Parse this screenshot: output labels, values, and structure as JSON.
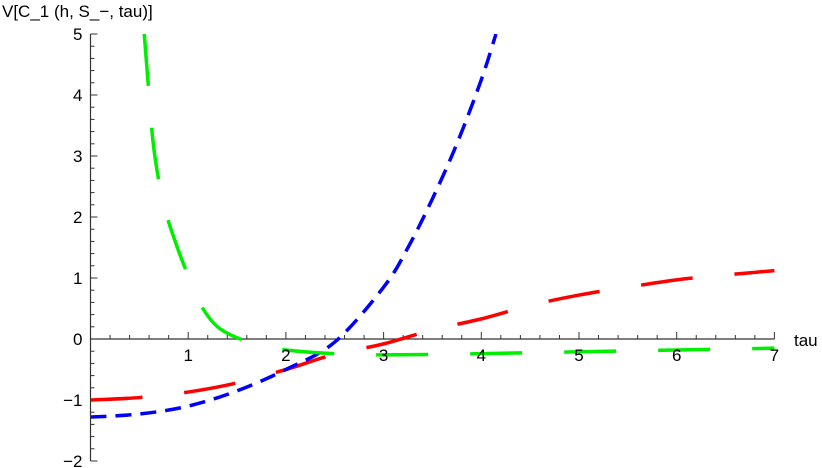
{
  "chart_data": {
    "type": "line",
    "title": "",
    "ylabel": "V[C_1 (h, S_−, tau)]",
    "xlabel": "tau",
    "xlim": [
      0,
      7
    ],
    "ylim": [
      -2,
      5
    ],
    "xticks": [
      1,
      2,
      3,
      4,
      5,
      6,
      7
    ],
    "yticks": [
      -2,
      -1,
      0,
      1,
      2,
      3,
      4,
      5
    ],
    "grid": false,
    "series": [
      {
        "color": "#ff0000",
        "dash": "long",
        "x": [
          0,
          0.5,
          1,
          1.5,
          2,
          2.5,
          3,
          3.5,
          4,
          4.5,
          5,
          5.5,
          6,
          6.5,
          7
        ],
        "y": [
          -1,
          -0.96,
          -0.87,
          -0.72,
          -0.5,
          -0.25,
          -0.08,
          0.15,
          0.33,
          0.55,
          0.72,
          0.85,
          0.97,
          1.05,
          1.12
        ]
      },
      {
        "color": "#0000ff",
        "dash": "short",
        "x": [
          0,
          0.5,
          1,
          1.5,
          2,
          2.5,
          3,
          3.25,
          3.5,
          3.75,
          4,
          4.15
        ],
        "y": [
          -1.28,
          -1.23,
          -1.1,
          -0.85,
          -0.5,
          -0.05,
          0.85,
          1.5,
          2.3,
          3.2,
          4.25,
          5
        ]
      },
      {
        "color": "#00ee00",
        "dash": "long",
        "x": [
          0.55,
          0.6,
          0.65,
          0.75,
          0.9,
          1.05,
          1.15,
          1.3,
          1.5,
          1.75,
          2,
          2.5,
          3,
          4,
          5,
          6,
          7
        ],
        "y": [
          5,
          4,
          3.1,
          2.2,
          1.45,
          0.85,
          0.5,
          0.2,
          0.02,
          -0.1,
          -0.18,
          -0.24,
          -0.26,
          -0.24,
          -0.21,
          -0.18,
          -0.15
        ]
      }
    ]
  }
}
